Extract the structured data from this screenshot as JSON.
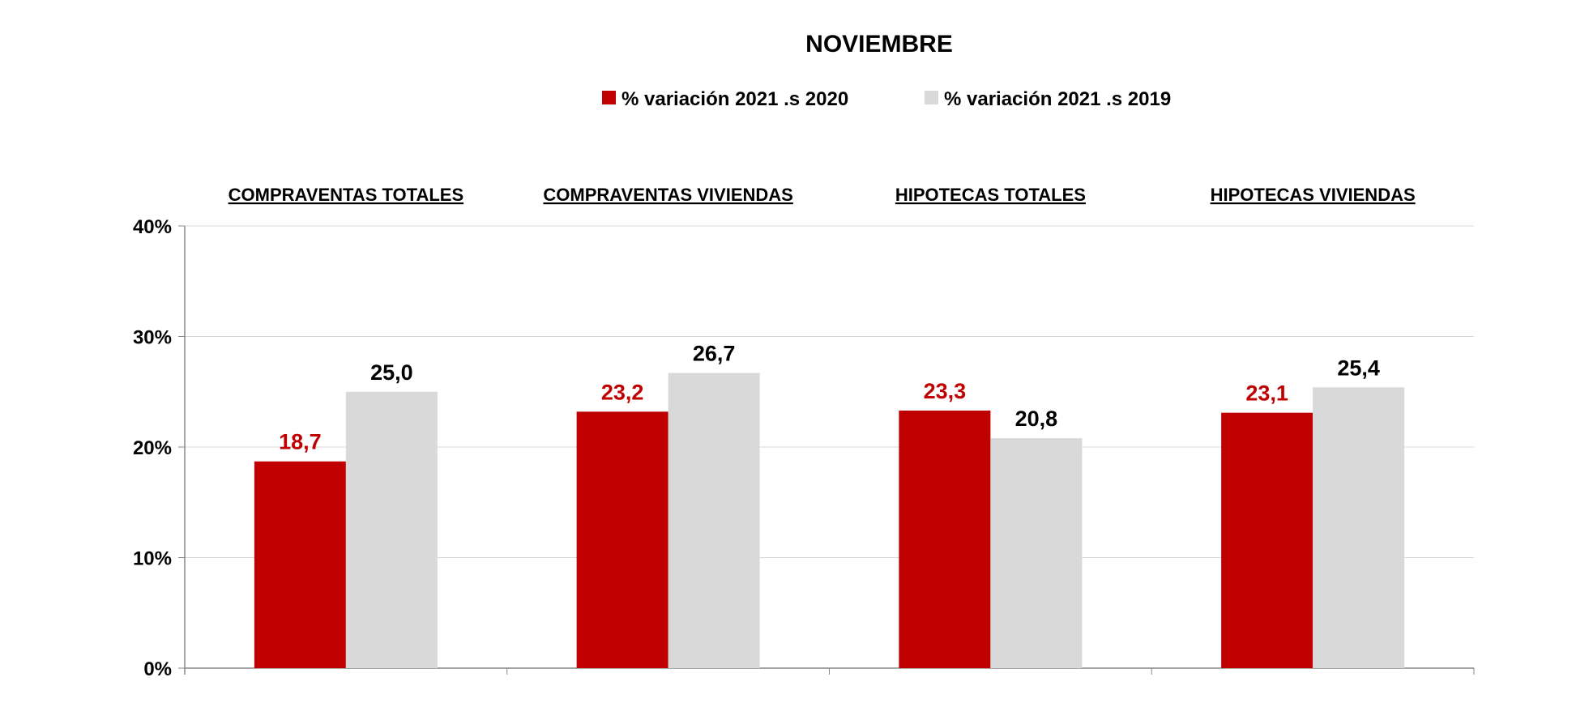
{
  "chart_data": {
    "type": "bar",
    "title": "NOVIEMBRE",
    "categories": [
      "COMPRAVENTAS TOTALES",
      "COMPRAVENTAS VIVIENDAS",
      "HIPOTECAS TOTALES",
      "HIPOTECAS VIVIENDAS"
    ],
    "series": [
      {
        "name": "% variación 2021  .s 2020",
        "color": "#c00000",
        "label_color": "#c00000",
        "values": [
          18.7,
          23.2,
          23.3,
          23.1
        ],
        "labels": [
          "18,7",
          "23,2",
          "23,3",
          "23,1"
        ]
      },
      {
        "name": "% variación 2021 .s 2019",
        "color": "#d9d9d9",
        "label_color": "#000000",
        "values": [
          25.0,
          26.7,
          20.8,
          25.4
        ],
        "labels": [
          "25,0",
          "26,7",
          "20,8",
          "25,4"
        ]
      }
    ],
    "yticks": [
      "0%",
      "10%",
      "20%",
      "30%",
      "40%"
    ],
    "ylim": [
      0,
      40
    ],
    "grid": true,
    "legend": "top-center"
  }
}
